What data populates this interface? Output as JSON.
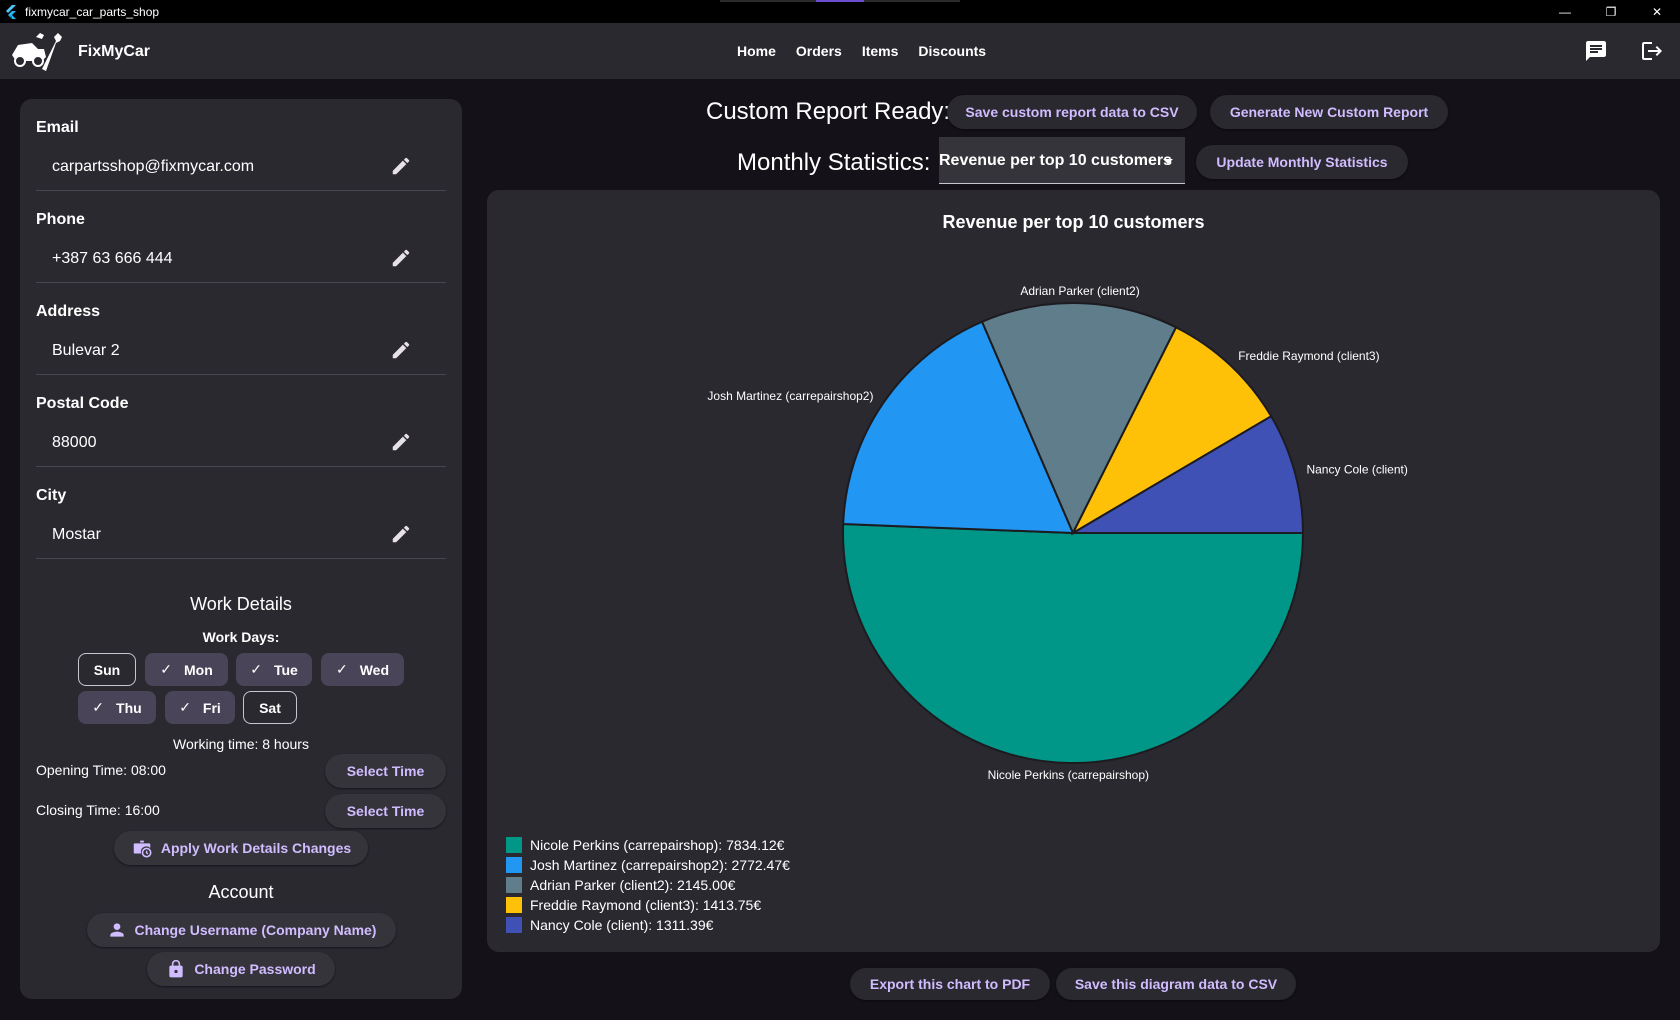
{
  "window": {
    "title": "fixmycar_car_parts_shop",
    "controls": {
      "minimize": "—",
      "restore": "❐",
      "close": "✕"
    }
  },
  "appbar": {
    "brand": "FixMyCar",
    "nav": [
      "Home",
      "Orders",
      "Items",
      "Discounts"
    ],
    "actions": {
      "chat_icon": "chat-icon",
      "logout_icon": "logout-icon"
    }
  },
  "profile": {
    "fields": [
      {
        "label": "Email",
        "value": "carpartsshop@fixmycar.com"
      },
      {
        "label": "Phone",
        "value": "+387 63 666 444"
      },
      {
        "label": "Address",
        "value": "Bulevar 2"
      },
      {
        "label": "Postal Code",
        "value": "88000"
      },
      {
        "label": "City",
        "value": "Mostar"
      }
    ]
  },
  "work_details": {
    "title": "Work Details",
    "days_label": "Work Days:",
    "days": [
      {
        "label": "Sun",
        "selected": false
      },
      {
        "label": "Mon",
        "selected": true
      },
      {
        "label": "Tue",
        "selected": true
      },
      {
        "label": "Wed",
        "selected": true
      },
      {
        "label": "Thu",
        "selected": true
      },
      {
        "label": "Fri",
        "selected": true
      },
      {
        "label": "Sat",
        "selected": false
      }
    ],
    "check_glyph": "✓",
    "working_time": "Working time: 8 hours",
    "opening_time": "Opening Time: 08:00",
    "closing_time": "Closing Time: 16:00",
    "select_time_label": "Select Time",
    "apply_label": "Apply Work Details Changes"
  },
  "account": {
    "title": "Account",
    "change_username_label": "Change Username (Company Name)",
    "change_password_label": "Change Password"
  },
  "report": {
    "custom_ready_label": "Custom Report Ready:",
    "save_custom_csv_label": "Save custom report data to CSV",
    "generate_new_label": "Generate New Custom Report",
    "monthly_label": "Monthly Statistics:",
    "monthly_selected": "Revenue per top 10 customers",
    "update_monthly_label": "Update Monthly Statistics"
  },
  "chart_data": {
    "type": "pie",
    "title": "Revenue per top 10 customers",
    "slices": [
      {
        "label": "Nicole Perkins (carrepairshop)",
        "value": 7834.12,
        "legend": "Nicole Perkins (carrepairshop): 7834.12€",
        "color": "#009688"
      },
      {
        "label": "Josh Martinez (carrepairshop2)",
        "value": 2772.47,
        "legend": "Josh Martinez (carrepairshop2): 2772.47€",
        "color": "#2196f3"
      },
      {
        "label": "Adrian Parker (client2)",
        "value": 2145.0,
        "legend": "Adrian Parker (client2): 2145.00€",
        "color": "#607d8b"
      },
      {
        "label": "Freddie Raymond (client3)",
        "value": 1413.75,
        "legend": "Freddie Raymond (client3): 1413.75€",
        "color": "#ffc107"
      },
      {
        "label": "Nancy Cole (client)",
        "value": 1311.39,
        "legend": "Nancy Cole (client): 1311.39€",
        "color": "#3f51b5"
      }
    ],
    "legend_position": "bottom-left"
  },
  "chart_actions": {
    "export_pdf_label": "Export this chart to PDF",
    "save_csv_label": "Save this diagram data to CSV"
  },
  "colors": {
    "background": "#141218",
    "surface": "#2b2930",
    "accent": "#d0bcff",
    "chip_selected": "#4a4458"
  }
}
